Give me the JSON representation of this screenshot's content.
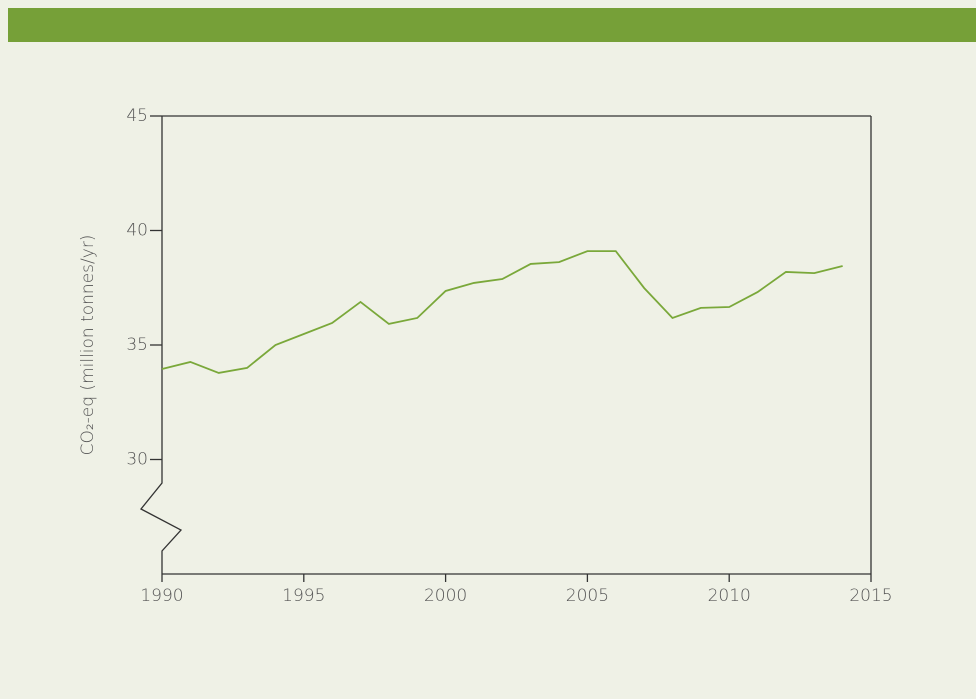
{
  "chart_data": {
    "type": "line",
    "y_label": "CO₂-eq (million tonnes/yr)",
    "x": [
      1990,
      1991,
      1992,
      1993,
      1994,
      1995,
      1996,
      1997,
      1998,
      1999,
      2000,
      2001,
      2002,
      2003,
      2004,
      2005,
      2006,
      2007,
      2008,
      2009,
      2010,
      2011,
      2012,
      2013,
      2014
    ],
    "values": [
      33.95,
      34.26,
      33.78,
      34.0,
      35.0,
      35.48,
      35.96,
      36.88,
      35.92,
      36.18,
      37.36,
      37.71,
      37.88,
      38.54,
      38.62,
      39.1,
      39.1,
      37.49,
      36.18,
      36.62,
      36.66,
      37.31,
      38.19,
      38.14,
      38.45
    ],
    "color": "#7aa83a",
    "xlim": [
      1990,
      2015
    ],
    "xticks": [
      1990,
      1995,
      2000,
      2005,
      2010,
      2015
    ],
    "ylim": [
      25,
      45
    ],
    "yticks": [
      30,
      35,
      40,
      45
    ]
  }
}
